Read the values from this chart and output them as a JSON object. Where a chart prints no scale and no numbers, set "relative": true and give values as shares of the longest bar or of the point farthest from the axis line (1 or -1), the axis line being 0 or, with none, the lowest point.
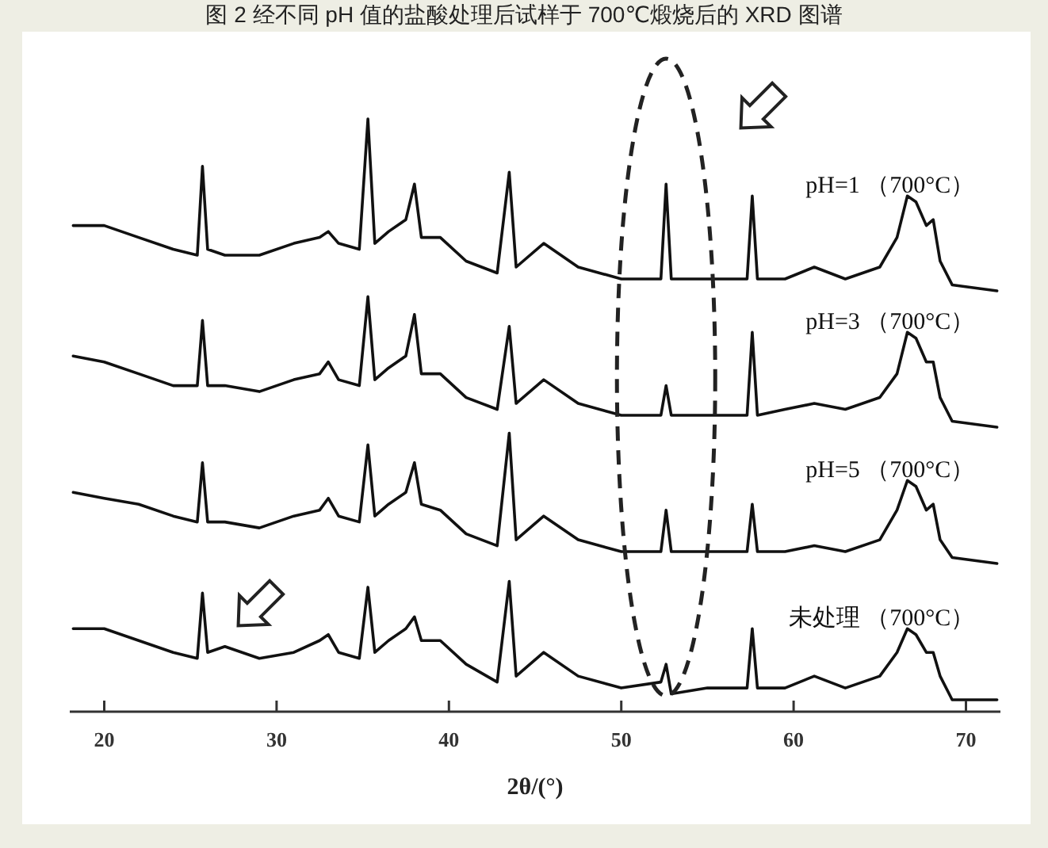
{
  "chart_data": {
    "type": "line",
    "title": "图 2 经不同 pH 值的盐酸处理后试样于 700℃煅烧后的 XRD 图谱",
    "xlabel": "2θ/(°)",
    "relative": true,
    "xlim": [
      18,
      72
    ],
    "xticks": [
      20,
      30,
      40,
      50,
      60,
      70
    ],
    "grid": false,
    "marker": "none",
    "line_style": "solid",
    "tick_labels": "x",
    "x": [
      18.2,
      20,
      22,
      24,
      25.4,
      25.7,
      26.0,
      27,
      29,
      31,
      32.5,
      33.0,
      33.6,
      34.8,
      35.3,
      35.7,
      36.5,
      37.5,
      38.0,
      38.4,
      39.5,
      41,
      42.8,
      43.5,
      43.9,
      45.5,
      47.5,
      50,
      52.3,
      52.6,
      52.9,
      55,
      57.3,
      57.6,
      57.9,
      59.5,
      61.2,
      63,
      65,
      66.0,
      66.6,
      67.1,
      67.7,
      68.1,
      68.5,
      69.2,
      71.8
    ],
    "series": [
      {
        "name": "pH=1 （700°C）",
        "color": "#111111",
        "values": [
          0.82,
          0.82,
          0.8,
          0.78,
          0.77,
          0.92,
          0.78,
          0.77,
          0.77,
          0.79,
          0.8,
          0.81,
          0.79,
          0.78,
          1,
          0.79,
          0.81,
          0.83,
          0.89,
          0.8,
          0.8,
          0.76,
          0.74,
          0.91,
          0.75,
          0.79,
          0.75,
          0.73,
          0.73,
          0.89,
          0.73,
          0.73,
          0.73,
          0.87,
          0.73,
          0.73,
          0.75,
          0.73,
          0.75,
          0.8,
          0.87,
          0.86,
          0.82,
          0.83,
          0.76,
          0.72,
          0.71
        ]
      },
      {
        "name": "pH=3 （700°C）",
        "color": "#111111",
        "values": [
          0.6,
          0.59,
          0.57,
          0.55,
          0.55,
          0.66,
          0.55,
          0.55,
          0.54,
          0.56,
          0.57,
          0.59,
          0.56,
          0.55,
          0.7,
          0.56,
          0.58,
          0.6,
          0.67,
          0.57,
          0.57,
          0.53,
          0.51,
          0.65,
          0.52,
          0.56,
          0.52,
          0.5,
          0.5,
          0.55,
          0.5,
          0.5,
          0.5,
          0.64,
          0.5,
          0.51,
          0.52,
          0.51,
          0.53,
          0.57,
          0.64,
          0.63,
          0.59,
          0.59,
          0.53,
          0.49,
          0.48
        ]
      },
      {
        "name": "pH=5 （700°C）",
        "color": "#111111",
        "values": [
          0.37,
          0.36,
          0.35,
          0.33,
          0.32,
          0.42,
          0.32,
          0.32,
          0.31,
          0.33,
          0.34,
          0.36,
          0.33,
          0.32,
          0.45,
          0.33,
          0.35,
          0.37,
          0.42,
          0.35,
          0.34,
          0.3,
          0.28,
          0.47,
          0.29,
          0.33,
          0.29,
          0.27,
          0.27,
          0.34,
          0.27,
          0.27,
          0.27,
          0.35,
          0.27,
          0.27,
          0.28,
          0.27,
          0.29,
          0.34,
          0.39,
          0.38,
          0.34,
          0.35,
          0.29,
          0.26,
          0.25
        ]
      },
      {
        "name": "未处理 （700°C）",
        "color": "#111111",
        "values": [
          0.14,
          0.14,
          0.12,
          0.1,
          0.09,
          0.2,
          0.1,
          0.11,
          0.09,
          0.1,
          0.12,
          0.13,
          0.1,
          0.09,
          0.21,
          0.1,
          0.12,
          0.14,
          0.16,
          0.12,
          0.12,
          0.08,
          0.05,
          0.22,
          0.06,
          0.1,
          0.06,
          0.04,
          0.05,
          0.08,
          0.03,
          0.04,
          0.04,
          0.14,
          0.04,
          0.04,
          0.06,
          0.04,
          0.06,
          0.1,
          0.14,
          0.13,
          0.1,
          0.1,
          0.06,
          0.02,
          0.02
        ]
      }
    ]
  }
}
